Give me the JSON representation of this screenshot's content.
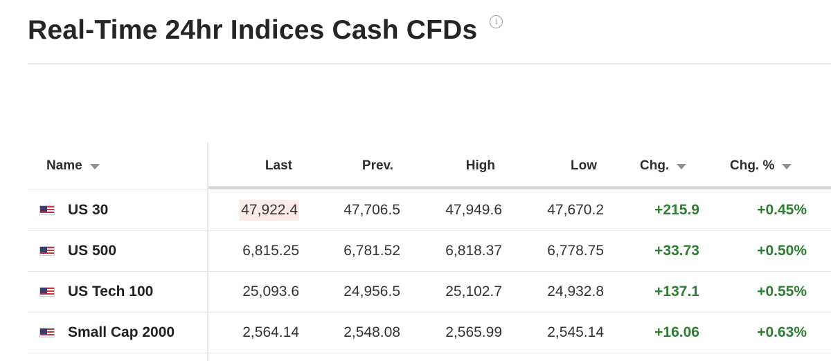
{
  "title": "Real-Time 24hr Indices Cash CFDs",
  "info_icon": "info-icon",
  "columns": {
    "name": "Name",
    "last": "Last",
    "prev": "Prev.",
    "high": "High",
    "low": "Low",
    "chg": "Chg.",
    "chg_pct": "Chg. %"
  },
  "rows": [
    {
      "flag": "us-flag-icon",
      "name": "US 30",
      "last": "47,922.4",
      "prev": "47,706.5",
      "high": "47,949.6",
      "low": "47,670.2",
      "chg": "+215.9",
      "chg_pct": "+0.45%"
    },
    {
      "flag": "us-flag-icon",
      "name": "US 500",
      "last": "6,815.25",
      "prev": "6,781.52",
      "high": "6,818.37",
      "low": "6,778.75",
      "chg": "+33.73",
      "chg_pct": "+0.50%"
    },
    {
      "flag": "us-flag-icon",
      "name": "US Tech 100",
      "last": "25,093.6",
      "prev": "24,956.5",
      "high": "25,102.7",
      "low": "24,932.8",
      "chg": "+137.1",
      "chg_pct": "+0.55%"
    },
    {
      "flag": "us-flag-icon",
      "name": "Small Cap 2000",
      "last": "2,564.14",
      "prev": "2,548.08",
      "high": "2,565.99",
      "low": "2,545.14",
      "chg": "+16.06",
      "chg_pct": "+0.63%"
    }
  ],
  "colors": {
    "positive": "#2e7d32",
    "last_highlight": "#fbeae8"
  }
}
